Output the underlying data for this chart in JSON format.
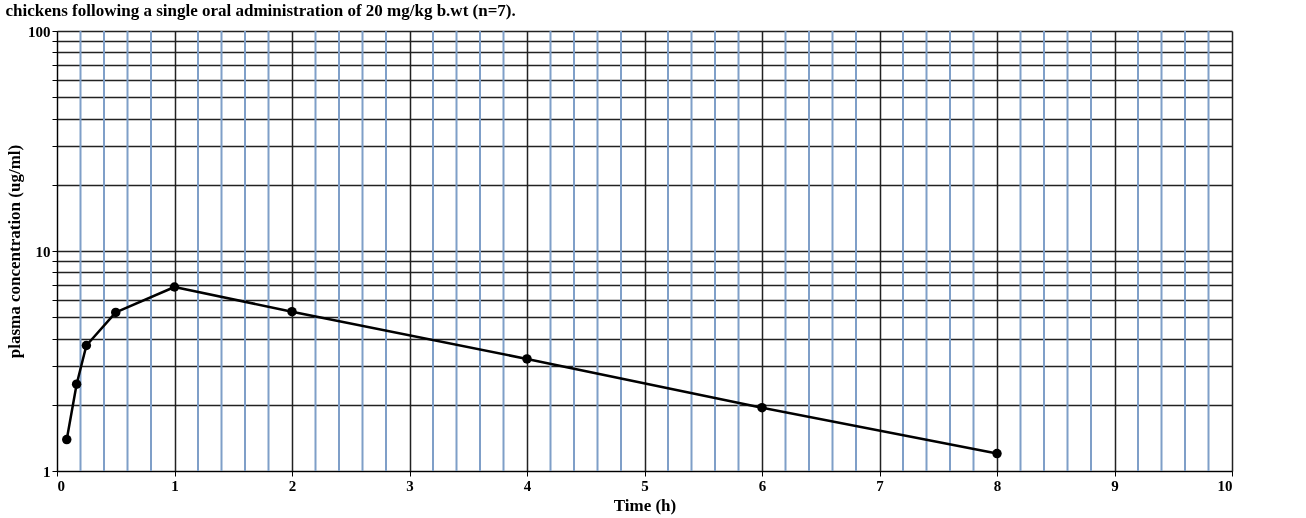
{
  "chart_data": {
    "type": "line",
    "title": "chickens following a single oral administration of 20 mg/kg b.wt (n=7).",
    "xlabel": "Time (h)",
    "ylabel": "plasma concentration (ug/ml)",
    "x": [
      0.083,
      0.167,
      0.25,
      0.5,
      1,
      2,
      4,
      6,
      8
    ],
    "series": [
      {
        "color": "#000000",
        "values": [
          1.39,
          2.48,
          3.72,
          5.26,
          6.86,
          5.3,
          3.23,
          1.94,
          1.2
        ]
      }
    ],
    "xlim": [
      0,
      10
    ],
    "xticks": [
      0,
      {
        "value": 0.2,
        "label": null
      },
      {
        "value": 0.4,
        "label": null
      },
      {
        "value": 0.6,
        "label": null
      },
      {
        "value": 0.8,
        "label": null
      },
      1,
      {
        "value": 1.2,
        "label": null
      },
      {
        "value": 1.4,
        "label": null
      },
      {
        "value": 1.6,
        "label": null
      },
      {
        "value": 1.8,
        "label": null
      },
      2,
      {
        "value": 2.2,
        "label": null
      },
      {
        "value": 2.4,
        "label": null
      },
      {
        "value": 2.6,
        "label": null
      },
      {
        "value": 2.8,
        "label": null
      },
      3,
      {
        "value": 3.2,
        "label": null
      },
      {
        "value": 3.4,
        "label": null
      },
      {
        "value": 3.6,
        "label": null
      },
      {
        "value": 3.8,
        "label": null
      },
      4,
      {
        "value": 4.2,
        "label": null
      },
      {
        "value": 4.4,
        "label": null
      },
      {
        "value": 4.6,
        "label": null
      },
      {
        "value": 4.8,
        "label": null
      },
      5,
      {
        "value": 5.2,
        "label": null
      },
      {
        "value": 5.4,
        "label": null
      },
      {
        "value": 5.6,
        "label": null
      },
      {
        "value": 5.8,
        "label": null
      },
      6,
      {
        "value": 6.2,
        "label": null
      },
      {
        "value": 6.4,
        "label": null
      },
      {
        "value": 6.6,
        "label": null
      },
      {
        "value": 6.8,
        "label": null
      },
      7,
      {
        "value": 7.2,
        "label": null
      },
      {
        "value": 7.4,
        "label": null
      },
      {
        "value": 7.6,
        "label": null
      },
      {
        "value": 7.8,
        "label": null
      },
      8,
      {
        "value": 8.2,
        "label": null
      },
      {
        "value": 8.4,
        "label": null
      },
      {
        "value": 8.6,
        "label": null
      },
      {
        "value": 8.8,
        "label": null
      },
      9,
      {
        "value": 9.2,
        "label": null
      },
      {
        "value": 9.4,
        "label": null
      },
      {
        "value": 9.6,
        "label": null
      },
      {
        "value": 9.8,
        "label": null
      },
      10
    ],
    "ylim": [
      1,
      100
    ],
    "yticks": [
      1,
      {
        "value": 2,
        "label": null
      },
      {
        "value": 3,
        "label": null
      },
      {
        "value": 4,
        "label": null
      },
      {
        "value": 5,
        "label": null
      },
      {
        "value": 6,
        "label": null
      },
      {
        "value": 7,
        "label": null
      },
      {
        "value": 8,
        "label": null
      },
      {
        "value": 9,
        "label": null
      },
      10,
      {
        "value": 20,
        "label": null
      },
      {
        "value": 30,
        "label": null
      },
      {
        "value": 40,
        "label": null
      },
      {
        "value": 50,
        "label": null
      },
      {
        "value": 60,
        "label": null
      },
      {
        "value": 70,
        "label": null
      },
      {
        "value": 80,
        "label": null
      },
      {
        "value": 90,
        "label": null
      },
      100
    ],
    "log": "y",
    "grid": true,
    "marker": "circle",
    "line_style": "solid"
  }
}
